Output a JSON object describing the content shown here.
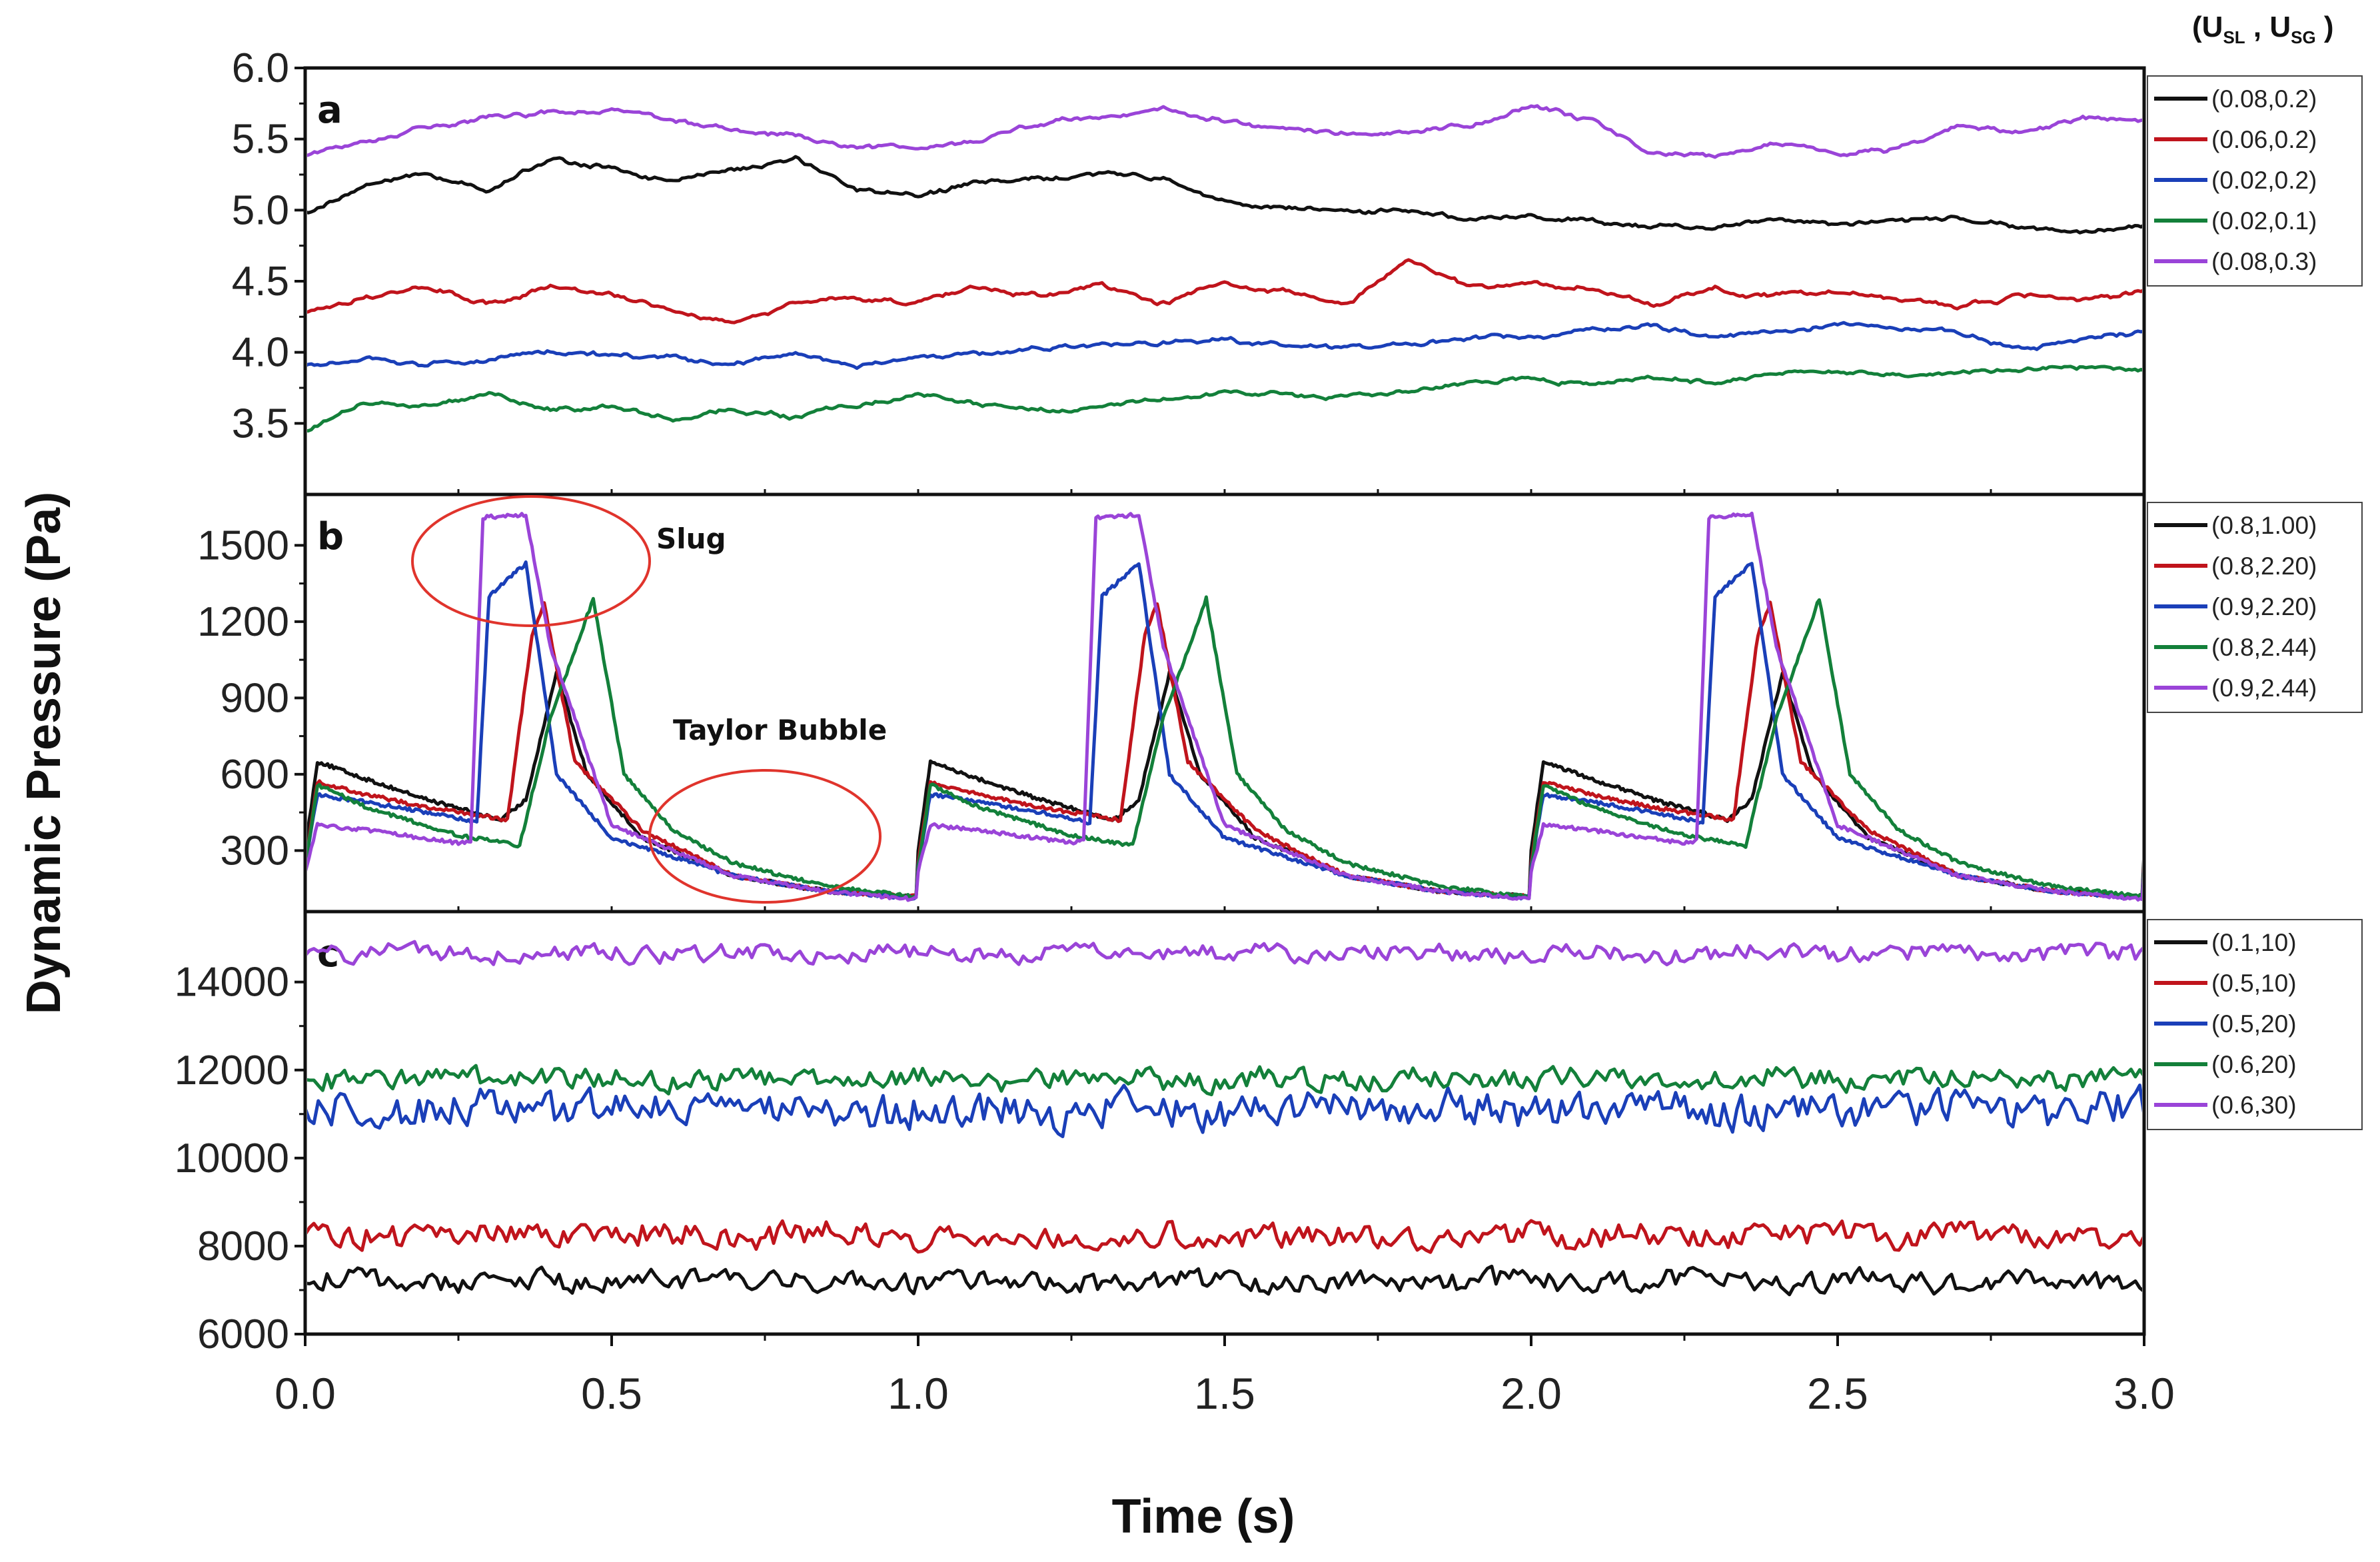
{
  "colors": {
    "black": "#111111",
    "red": "#c0141c",
    "blue": "#1a3fb8",
    "green": "#13803a",
    "purple": "#9a44d8",
    "annotation": "#e0342c"
  },
  "ylabel": "Dynamic Pressure (Pa)",
  "xlabel": "Time (s)",
  "x_ticks": [
    "0.0",
    "0.5",
    "1.0",
    "1.5",
    "2.0",
    "2.5",
    "3.0"
  ],
  "legend_title": {
    "prefix": "(U",
    "sub1": "SL",
    "mid": " , U",
    "sub2": "SG",
    "suffix": " )"
  },
  "annotations": {
    "slug": "Slug",
    "taylor": "Taylor Bubble"
  },
  "chart_data": [
    {
      "type": "line",
      "panel": "a",
      "xlim": [
        0,
        3
      ],
      "ylim": [
        3.0,
        6.0
      ],
      "yticks": [
        "6.0",
        "5.5",
        "5.0",
        "4.5",
        "4.0",
        "3.5"
      ],
      "ytick_values": [
        6.0,
        5.5,
        5.0,
        4.5,
        4.0,
        3.5
      ],
      "x": [
        0.0,
        0.1,
        0.2,
        0.3,
        0.4,
        0.5,
        0.6,
        0.7,
        0.8,
        0.9,
        1.0,
        1.1,
        1.2,
        1.3,
        1.4,
        1.5,
        1.6,
        1.7,
        1.8,
        1.9,
        2.0,
        2.1,
        2.2,
        2.3,
        2.4,
        2.5,
        2.6,
        2.7,
        2.8,
        2.9,
        3.0
      ],
      "series": [
        {
          "name": "(0.08,0.2)",
          "color": "black",
          "values": [
            4.98,
            5.18,
            5.25,
            5.15,
            5.35,
            5.3,
            5.2,
            5.28,
            5.35,
            5.15,
            5.12,
            5.18,
            5.22,
            5.26,
            5.22,
            5.05,
            5.02,
            5.0,
            4.98,
            4.95,
            4.97,
            4.93,
            4.88,
            4.9,
            4.92,
            4.9,
            4.93,
            4.95,
            4.88,
            4.85,
            4.87
          ]
        },
        {
          "name": "(0.06,0.2)",
          "color": "red",
          "values": [
            4.28,
            4.4,
            4.45,
            4.35,
            4.45,
            4.4,
            4.3,
            4.22,
            4.35,
            4.38,
            4.35,
            4.45,
            4.4,
            4.48,
            4.35,
            4.5,
            4.42,
            4.35,
            4.65,
            4.45,
            4.48,
            4.45,
            4.35,
            4.45,
            4.4,
            4.42,
            4.38,
            4.33,
            4.4,
            4.38,
            4.43
          ]
        },
        {
          "name": "(0.02,0.2)",
          "color": "blue",
          "values": [
            3.9,
            3.95,
            3.9,
            3.96,
            4.0,
            3.98,
            3.95,
            3.92,
            3.98,
            3.9,
            3.97,
            3.98,
            4.02,
            4.05,
            4.08,
            4.1,
            4.05,
            4.02,
            4.05,
            4.1,
            4.12,
            4.15,
            4.18,
            4.12,
            4.15,
            4.2,
            4.18,
            4.12,
            4.02,
            4.1,
            4.15
          ]
        },
        {
          "name": "(0.02,0.1)",
          "color": "green",
          "values": [
            3.45,
            3.65,
            3.6,
            3.72,
            3.6,
            3.62,
            3.52,
            3.6,
            3.55,
            3.62,
            3.72,
            3.62,
            3.58,
            3.62,
            3.68,
            3.72,
            3.7,
            3.68,
            3.72,
            3.78,
            3.82,
            3.78,
            3.82,
            3.8,
            3.85,
            3.88,
            3.82,
            3.85,
            3.88,
            3.9,
            3.88
          ]
        },
        {
          "name": "(0.08,0.3)",
          "color": "purple",
          "values": [
            5.38,
            5.5,
            5.6,
            5.65,
            5.68,
            5.72,
            5.62,
            5.55,
            5.52,
            5.45,
            5.42,
            5.48,
            5.62,
            5.66,
            5.72,
            5.62,
            5.58,
            5.55,
            5.55,
            5.6,
            5.72,
            5.62,
            5.4,
            5.36,
            5.45,
            5.4,
            5.42,
            5.6,
            5.55,
            5.65,
            5.62
          ]
        }
      ]
    },
    {
      "type": "line",
      "panel": "b",
      "xlim": [
        0,
        3
      ],
      "ylim": [
        60,
        1700
      ],
      "yticks": [
        "1500",
        "1200",
        "900",
        "600",
        "300"
      ],
      "ytick_values": [
        1500,
        1200,
        900,
        600,
        300
      ],
      "cycle_period": 1.0,
      "cycles": 3,
      "series": [
        {
          "name": "(0.8,1.00)",
          "color": "black",
          "cycle_x": [
            0.0,
            0.02,
            0.1,
            0.2,
            0.32,
            0.36,
            0.41,
            0.46,
            0.55,
            0.7,
            0.85,
            0.99
          ],
          "cycle_values": [
            300,
            650,
            580,
            500,
            420,
            500,
            1000,
            600,
            350,
            200,
            140,
            120
          ]
        },
        {
          "name": "(0.8,2.20)",
          "color": "red",
          "cycle_x": [
            0.0,
            0.02,
            0.1,
            0.2,
            0.33,
            0.37,
            0.39,
            0.44,
            0.55,
            0.7,
            0.85,
            0.99
          ],
          "cycle_values": [
            250,
            570,
            520,
            470,
            420,
            1150,
            1270,
            650,
            380,
            200,
            140,
            120
          ]
        },
        {
          "name": "(0.9,2.20)",
          "color": "blue",
          "cycle_x": [
            0.0,
            0.02,
            0.1,
            0.2,
            0.28,
            0.3,
            0.36,
            0.41,
            0.5,
            0.7,
            0.85,
            0.99
          ],
          "cycle_values": [
            240,
            520,
            490,
            450,
            410,
            1300,
            1430,
            600,
            350,
            200,
            140,
            115
          ]
        },
        {
          "name": "(0.8,2.44)",
          "color": "green",
          "cycle_x": [
            0.0,
            0.02,
            0.1,
            0.25,
            0.35,
            0.4,
            0.47,
            0.52,
            0.6,
            0.7,
            0.85,
            0.99
          ],
          "cycle_values": [
            230,
            560,
            470,
            360,
            320,
            820,
            1290,
            600,
            380,
            250,
            160,
            120
          ]
        },
        {
          "name": "(0.9,2.44)",
          "color": "purple",
          "cycle_x": [
            0.0,
            0.02,
            0.1,
            0.25,
            0.27,
            0.29,
            0.36,
            0.4,
            0.5,
            0.7,
            0.85,
            0.99
          ],
          "cycle_values": [
            220,
            400,
            380,
            330,
            340,
            1610,
            1620,
            1100,
            400,
            200,
            140,
            110
          ]
        }
      ]
    },
    {
      "type": "line",
      "panel": "c",
      "xlim": [
        0,
        3
      ],
      "ylim": [
        6000,
        15600
      ],
      "yticks": [
        "14000",
        "12000",
        "10000",
        "8000",
        "6000"
      ],
      "ytick_values": [
        14000,
        12000,
        10000,
        8000,
        6000
      ],
      "noisy": true,
      "series": [
        {
          "name": "(0.1,10)",
          "color": "black",
          "mean": 7200,
          "amplitude": 220
        },
        {
          "name": "(0.5,10)",
          "color": "red",
          "mean": 8250,
          "amplitude": 260
        },
        {
          "name": "(0.5,20)",
          "color": "blue",
          "mean": 11100,
          "amplitude": 380
        },
        {
          "name": "(0.6,20)",
          "color": "green",
          "mean": 11800,
          "amplitude": 230
        },
        {
          "name": "(0.6,30)",
          "color": "purple",
          "mean": 14650,
          "amplitude": 180
        }
      ]
    }
  ]
}
